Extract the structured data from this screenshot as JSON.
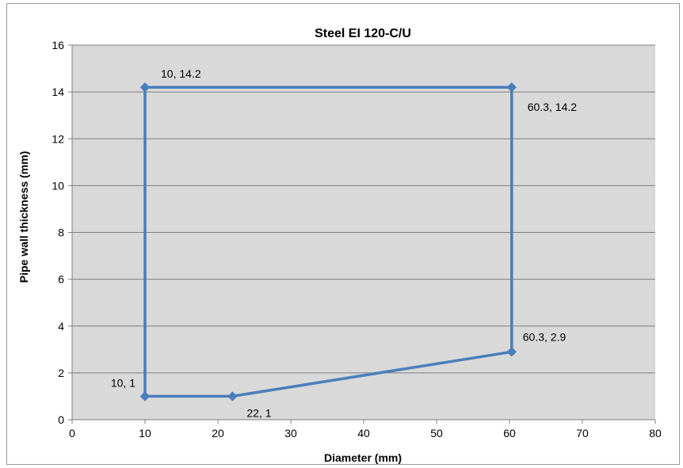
{
  "chart_data": {
    "type": "line",
    "title": "Steel EI 120-C/U",
    "xlabel": "Diameter (mm)",
    "ylabel": "Pipe wall thickness  (mm)",
    "xlim": [
      0,
      80
    ],
    "ylim": [
      0,
      16
    ],
    "x_ticks": [
      0,
      10,
      20,
      30,
      40,
      50,
      60,
      70,
      80
    ],
    "y_ticks": [
      0,
      2,
      4,
      6,
      8,
      10,
      12,
      14,
      16
    ],
    "grid": "horizontal",
    "legend": "none",
    "series": [
      {
        "color": "#4a7ebb",
        "points": [
          {
            "x": 10,
            "y": 1,
            "label": "10, 1"
          },
          {
            "x": 22,
            "y": 1,
            "label": "22, 1"
          },
          {
            "x": 60.3,
            "y": 2.9,
            "label": "60.3, 2.9"
          },
          {
            "x": 60.3,
            "y": 14.2,
            "label": "60.3, 14.2"
          },
          {
            "x": 10,
            "y": 14.2,
            "label": "10, 14.2"
          },
          {
            "x": 10,
            "y": 1
          }
        ]
      }
    ],
    "plot_background": "#d9d9d9",
    "gridline_color": "#7f7f7f"
  }
}
